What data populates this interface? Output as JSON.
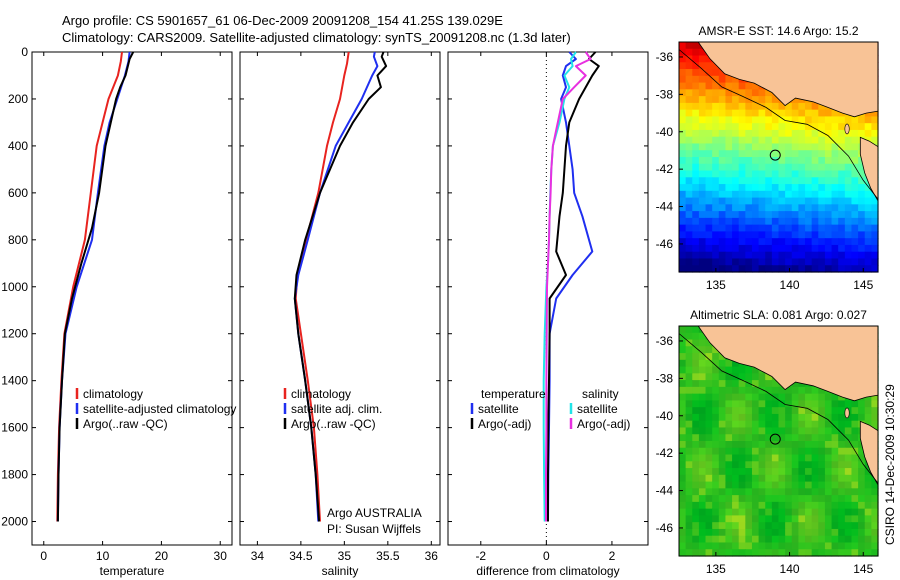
{
  "header": {
    "line1": "Argo profile: CS 5901657_61 06-Dec-2009 20091208_154 41.25S 139.029E",
    "line2": "Climatology: CARS2009. Satellite-adjusted climatology: synTS_20091208.nc (1.3d later)"
  },
  "side_label": "CSIRO 14-Dec-2009 10:30:29",
  "colors": {
    "red": "#e8231f",
    "blue": "#1f2ff0",
    "black": "#000000",
    "cyan": "#22e4e8",
    "magenta": "#e830e0"
  },
  "chart_data": [
    {
      "type": "line",
      "id": "temperature",
      "xlabel": "temperature",
      "xlim": [
        -2,
        32
      ],
      "ylim": [
        0,
        2100
      ],
      "y_reversed": true,
      "xticks": [
        "0",
        "10",
        "20",
        "30"
      ],
      "xtick_values": [
        0,
        10,
        20,
        30
      ],
      "yticks": [
        "0",
        "200",
        "400",
        "600",
        "800",
        "1000",
        "1200",
        "1400",
        "1600",
        "1800",
        "2000"
      ],
      "ytick_values": [
        0,
        200,
        400,
        600,
        800,
        1000,
        1200,
        1400,
        1600,
        1800,
        2000
      ],
      "legend": [
        "climatology",
        "satellite-adjusted climatology",
        "Argo(..raw -QC)"
      ],
      "series": [
        {
          "name": "climatology",
          "color": "red",
          "points": [
            [
              13.3,
              0
            ],
            [
              13.1,
              40
            ],
            [
              12.6,
              100
            ],
            [
              11.0,
              200
            ],
            [
              10.0,
              300
            ],
            [
              9.0,
              400
            ],
            [
              8.0,
              600
            ],
            [
              7.0,
              800
            ],
            [
              5.0,
              1000
            ],
            [
              3.5,
              1200
            ],
            [
              3.0,
              1400
            ],
            [
              2.6,
              1600
            ],
            [
              2.4,
              1800
            ],
            [
              2.3,
              2000
            ]
          ]
        },
        {
          "name": "satellite-adjusted climatology",
          "color": "blue",
          "points": [
            [
              14.6,
              0
            ],
            [
              14.4,
              40
            ],
            [
              13.8,
              100
            ],
            [
              12.5,
              200
            ],
            [
              11.2,
              300
            ],
            [
              10.3,
              400
            ],
            [
              9.2,
              600
            ],
            [
              8.2,
              800
            ],
            [
              5.6,
              1000
            ],
            [
              3.7,
              1200
            ],
            [
              3.1,
              1400
            ],
            [
              2.7,
              1600
            ],
            [
              2.5,
              1800
            ],
            [
              2.4,
              2000
            ]
          ]
        },
        {
          "name": "Argo(..raw -QC)",
          "color": "black",
          "points": [
            [
              15.2,
              0
            ],
            [
              14.6,
              30
            ],
            [
              14.2,
              70
            ],
            [
              13.9,
              100
            ],
            [
              13.0,
              150
            ],
            [
              12.3,
              200
            ],
            [
              11.4,
              300
            ],
            [
              10.5,
              400
            ],
            [
              9.4,
              600
            ],
            [
              8.2,
              750
            ],
            [
              6.4,
              900
            ],
            [
              4.8,
              1050
            ],
            [
              3.6,
              1200
            ],
            [
              3.1,
              1400
            ],
            [
              2.7,
              1600
            ],
            [
              2.5,
              1800
            ],
            [
              2.4,
              2000
            ]
          ]
        }
      ]
    },
    {
      "type": "line",
      "id": "salinity",
      "xlabel": "salinity",
      "xlim": [
        33.8,
        36.1
      ],
      "ylim": [
        0,
        2100
      ],
      "y_reversed": true,
      "xticks": [
        "34",
        "34.5",
        "35",
        "35.5",
        "36"
      ],
      "xtick_values": [
        34,
        34.5,
        35,
        35.5,
        36
      ],
      "legend": [
        "climatology",
        "satellite adj. clim.",
        "Argo(..raw -QC)"
      ],
      "annotations": [
        "Argo AUSTRALIA",
        "PI: Susan Wijffels"
      ],
      "series": [
        {
          "name": "climatology",
          "color": "red",
          "points": [
            [
              35.05,
              0
            ],
            [
              35.03,
              50
            ],
            [
              35.0,
              100
            ],
            [
              34.95,
              200
            ],
            [
              34.87,
              300
            ],
            [
              34.8,
              400
            ],
            [
              34.7,
              600
            ],
            [
              34.56,
              800
            ],
            [
              34.46,
              950
            ],
            [
              34.44,
              1050
            ],
            [
              34.5,
              1200
            ],
            [
              34.58,
              1400
            ],
            [
              34.65,
              1600
            ],
            [
              34.69,
              1800
            ],
            [
              34.72,
              2000
            ]
          ]
        },
        {
          "name": "satellite adj. clim.",
          "color": "blue",
          "points": [
            [
              35.35,
              0
            ],
            [
              35.34,
              20
            ],
            [
              35.38,
              60
            ],
            [
              35.32,
              100
            ],
            [
              35.2,
              200
            ],
            [
              35.05,
              300
            ],
            [
              34.9,
              400
            ],
            [
              34.72,
              600
            ],
            [
              34.58,
              800
            ],
            [
              34.47,
              950
            ],
            [
              34.43,
              1050
            ],
            [
              34.47,
              1200
            ],
            [
              34.55,
              1400
            ],
            [
              34.62,
              1600
            ],
            [
              34.67,
              1800
            ],
            [
              34.7,
              2000
            ]
          ]
        },
        {
          "name": "Argo(..raw -QC)",
          "color": "black",
          "points": [
            [
              35.45,
              0
            ],
            [
              35.43,
              20
            ],
            [
              35.48,
              60
            ],
            [
              35.38,
              100
            ],
            [
              35.42,
              150
            ],
            [
              35.28,
              200
            ],
            [
              35.1,
              300
            ],
            [
              34.95,
              400
            ],
            [
              34.72,
              600
            ],
            [
              34.55,
              800
            ],
            [
              34.45,
              950
            ],
            [
              34.43,
              1050
            ],
            [
              34.47,
              1200
            ],
            [
              34.55,
              1400
            ],
            [
              34.62,
              1600
            ],
            [
              34.67,
              1800
            ],
            [
              34.71,
              2000
            ]
          ]
        }
      ]
    },
    {
      "type": "line",
      "id": "difference",
      "xlabel": "difference from climatology",
      "xlim": [
        -3,
        3.1
      ],
      "ylim": [
        0,
        2100
      ],
      "y_reversed": true,
      "xticks": [
        "-2",
        "0",
        "2"
      ],
      "xtick_values": [
        -2,
        0,
        2
      ],
      "legend_left_title": "temperature",
      "legend_right_title": "salinity",
      "legend": [
        "satellite",
        "Argo(-adj)",
        "satellite",
        "Argo(-adj)"
      ],
      "series": [
        {
          "name": "temperature satellite",
          "color": "blue",
          "points": [
            [
              0.7,
              0
            ],
            [
              0.9,
              30
            ],
            [
              0.6,
              60
            ],
            [
              0.5,
              100
            ],
            [
              0.6,
              150
            ],
            [
              0.45,
              200
            ],
            [
              0.6,
              300
            ],
            [
              0.7,
              400
            ],
            [
              0.8,
              500
            ],
            [
              0.85,
              600
            ],
            [
              1.1,
              700
            ],
            [
              1.4,
              850
            ],
            [
              0.8,
              950
            ],
            [
              0.3,
              1050
            ],
            [
              0.1,
              1200
            ],
            [
              0.1,
              1400
            ],
            [
              0.08,
              1600
            ],
            [
              0.06,
              1800
            ],
            [
              0.05,
              2000
            ]
          ]
        },
        {
          "name": "temperature Argo(-adj)",
          "color": "black",
          "points": [
            [
              1.5,
              0
            ],
            [
              1.3,
              30
            ],
            [
              1.6,
              60
            ],
            [
              1.4,
              100
            ],
            [
              1.2,
              150
            ],
            [
              1.0,
              200
            ],
            [
              0.7,
              300
            ],
            [
              0.6,
              400
            ],
            [
              0.55,
              500
            ],
            [
              0.5,
              600
            ],
            [
              0.4,
              700
            ],
            [
              0.3,
              850
            ],
            [
              0.6,
              950
            ],
            [
              0.1,
              1050
            ],
            [
              0.1,
              1200
            ],
            [
              0.08,
              1400
            ],
            [
              0.06,
              1600
            ],
            [
              0.05,
              1800
            ],
            [
              0.05,
              2000
            ]
          ]
        },
        {
          "name": "salinity satellite",
          "color": "cyan",
          "points": [
            [
              0.9,
              0
            ],
            [
              0.75,
              30
            ],
            [
              0.8,
              60
            ],
            [
              0.55,
              100
            ],
            [
              0.7,
              150
            ],
            [
              0.55,
              200
            ],
            [
              0.4,
              300
            ],
            [
              0.2,
              400
            ],
            [
              0.15,
              500
            ],
            [
              0.12,
              600
            ],
            [
              0.1,
              700
            ],
            [
              0.08,
              800
            ],
            [
              0.05,
              900
            ],
            [
              0.0,
              1000
            ],
            [
              -0.05,
              1200
            ],
            [
              -0.08,
              1400
            ],
            [
              -0.08,
              1600
            ],
            [
              -0.07,
              1800
            ],
            [
              -0.05,
              2000
            ]
          ]
        },
        {
          "name": "salinity Argo(-adj)",
          "color": "magenta",
          "points": [
            [
              1.2,
              0
            ],
            [
              1.35,
              30
            ],
            [
              0.9,
              60
            ],
            [
              1.2,
              100
            ],
            [
              0.85,
              150
            ],
            [
              0.5,
              200
            ],
            [
              0.35,
              300
            ],
            [
              0.2,
              400
            ],
            [
              0.15,
              500
            ],
            [
              0.13,
              600
            ],
            [
              0.1,
              700
            ],
            [
              0.08,
              800
            ],
            [
              0.05,
              900
            ],
            [
              0.02,
              1000
            ],
            [
              0.01,
              1200
            ],
            [
              0.0,
              1400
            ],
            [
              0.0,
              1600
            ],
            [
              -0.01,
              1800
            ],
            [
              -0.01,
              2000
            ]
          ]
        }
      ]
    },
    {
      "type": "heatmap",
      "id": "sst-map",
      "title": "AMSR-E SST: 14.6 Argo: 15.2",
      "xlim": [
        132.5,
        146
      ],
      "ylim": [
        -47.5,
        -35.2
      ],
      "xticks": [
        "135",
        "140",
        "145"
      ],
      "xtick_values": [
        135,
        140,
        145
      ],
      "yticks": [
        "-36",
        "-38",
        "-40",
        "-42",
        "-44",
        "-46"
      ],
      "ytick_values": [
        -36,
        -38,
        -40,
        -42,
        -44,
        -46
      ],
      "marker": [
        139.029,
        -41.25
      ],
      "colormap": "jet"
    },
    {
      "type": "heatmap",
      "id": "sla-map",
      "title": "Altimetric SLA: 0.081 Argo: 0.027",
      "xlim": [
        132.5,
        146
      ],
      "ylim": [
        -47.5,
        -35.2
      ],
      "xticks": [
        "135",
        "140",
        "145"
      ],
      "xtick_values": [
        135,
        140,
        145
      ],
      "yticks": [
        "-36",
        "-38",
        "-40",
        "-42",
        "-44",
        "-46"
      ],
      "ytick_values": [
        -36,
        -38,
        -40,
        -42,
        -44,
        -46
      ],
      "marker": [
        139.029,
        -41.25
      ],
      "colormap": "greens"
    }
  ]
}
